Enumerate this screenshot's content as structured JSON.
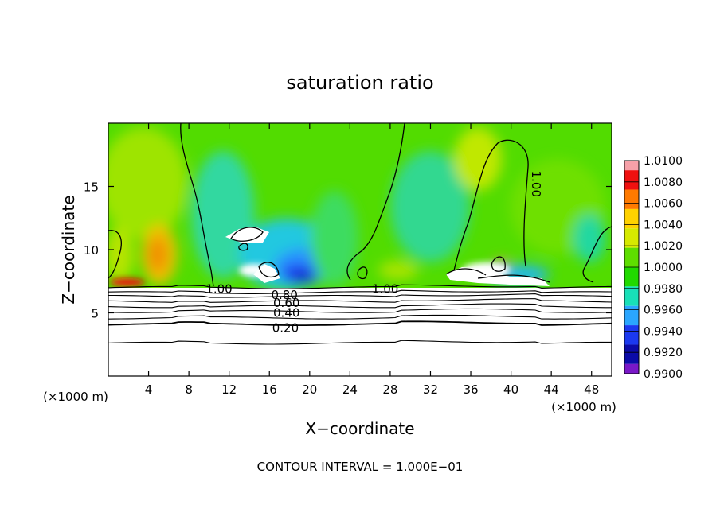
{
  "chart_data": {
    "type": "heatmap",
    "title": "saturation ratio",
    "xlabel": "X−coordinate",
    "ylabel": "Z−coordinate",
    "x_unit": "(×1000 m)",
    "x_unit_right": "(×1000 m)",
    "xlim": [
      0,
      50
    ],
    "ylim": [
      0,
      20
    ],
    "x_ticks": [
      4,
      8,
      12,
      16,
      20,
      24,
      28,
      32,
      36,
      40,
      44,
      48
    ],
    "y_ticks": [
      5,
      10,
      15
    ],
    "footer": "CONTOUR INTERVAL = 1.000E−01",
    "colorbar": {
      "labels": [
        "1.0100",
        "1.0080",
        "1.0060",
        "1.0040",
        "1.0020",
        "1.0000",
        "0.9980",
        "0.9960",
        "0.9940",
        "0.9920",
        "0.9900"
      ],
      "colors": [
        "#f6a0a8",
        "#f01010",
        "#ff7a00",
        "#ffd200",
        "#d6ea00",
        "#5ede00",
        "#21da00",
        "#18e0b8",
        "#2aa6ff",
        "#1b39f0",
        "#0b0ba8",
        "#7a18c8"
      ]
    },
    "contour_labels": [
      {
        "text": "1.00",
        "x": 11.0,
        "z": 6.9
      },
      {
        "text": "1.00",
        "x": 27.5,
        "z": 6.9
      },
      {
        "text": "1.00",
        "x": 42.5,
        "z": 15.2
      },
      {
        "text": "0.80",
        "x": 17.5,
        "z": 6.4
      },
      {
        "text": "0.60",
        "x": 17.7,
        "z": 5.8
      },
      {
        "text": "0.40",
        "x": 17.7,
        "z": 5.0
      },
      {
        "text": "0.20",
        "x": 17.6,
        "z": 3.8
      }
    ],
    "stable_layer_levels_z": [
      7.0,
      6.6,
      6.3,
      5.9,
      5.5,
      5.1,
      4.6,
      4.1,
      2.6
    ]
  }
}
